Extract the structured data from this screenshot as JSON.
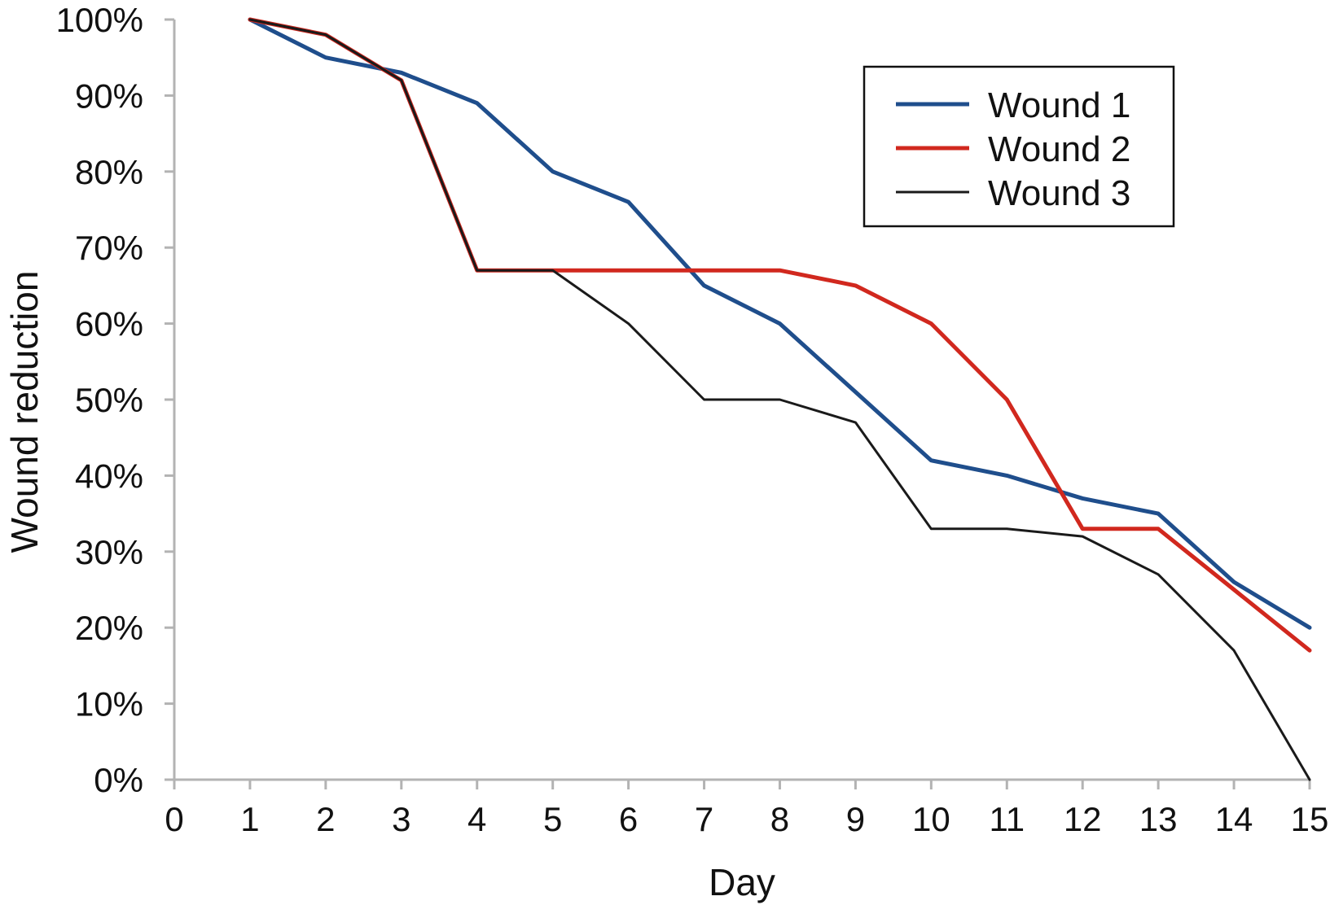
{
  "chart_data": {
    "type": "line",
    "title": "",
    "xlabel": "Day",
    "ylabel": "Wound reduction",
    "xlim": [
      0,
      15
    ],
    "ylim": [
      0,
      100
    ],
    "x_ticks": [
      0,
      1,
      2,
      3,
      4,
      5,
      6,
      7,
      8,
      9,
      10,
      11,
      12,
      13,
      14,
      15
    ],
    "y_ticks": [
      0,
      10,
      20,
      30,
      40,
      50,
      60,
      70,
      80,
      90,
      100
    ],
    "x_tick_labels": [
      "0",
      "1",
      "2",
      "3",
      "4",
      "5",
      "6",
      "7",
      "8",
      "9",
      "10",
      "11",
      "12",
      "13",
      "14",
      "15"
    ],
    "y_tick_labels": [
      "0%",
      "10%",
      "20%",
      "30%",
      "40%",
      "50%",
      "60%",
      "70%",
      "80%",
      "90%",
      "100%"
    ],
    "grid": false,
    "legend_position": "top-right",
    "x": [
      1,
      2,
      3,
      4,
      5,
      6,
      7,
      8,
      9,
      10,
      11,
      12,
      13,
      14,
      15
    ],
    "series": [
      {
        "name": "Wound 1",
        "color": "#1f4e8c",
        "values": [
          100,
          95,
          93,
          89,
          80,
          76,
          65,
          60,
          51,
          42,
          40,
          37,
          35,
          26,
          20
        ]
      },
      {
        "name": "Wound 2",
        "color": "#d1281e",
        "values": [
          100,
          98,
          92,
          67,
          67,
          67,
          67,
          67,
          65,
          60,
          50,
          33,
          33,
          25,
          17
        ]
      },
      {
        "name": "Wound 3",
        "color": "#1a1a1a",
        "values": [
          100,
          98,
          92,
          67,
          67,
          60,
          50,
          50,
          47,
          33,
          33,
          32,
          27,
          17,
          0
        ]
      }
    ]
  }
}
